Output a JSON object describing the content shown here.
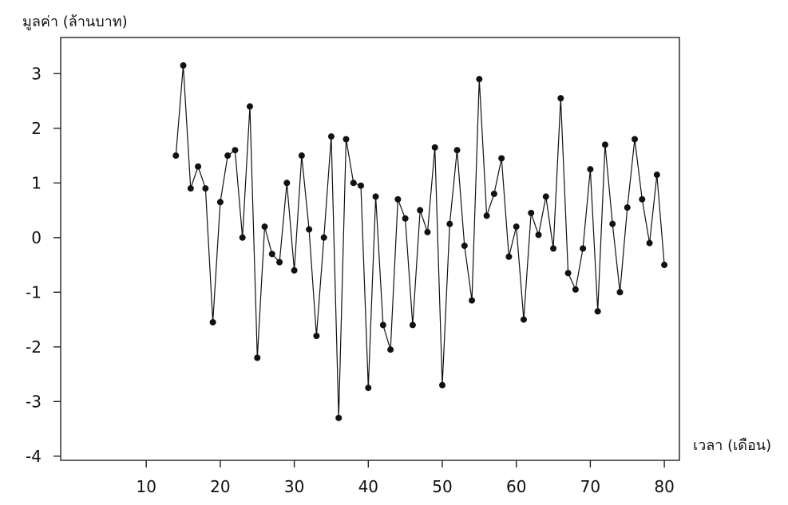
{
  "chart_data": {
    "type": "line",
    "title": "",
    "ylabel": "มูลค่า (ล้านบาท)",
    "xlabel": "เวลา (เดือน)",
    "xlim": [
      4,
      83
    ],
    "ylim": [
      -4,
      3.4
    ],
    "xticks": [
      10,
      20,
      30,
      40,
      50,
      60,
      70,
      80
    ],
    "yticks": [
      3,
      2,
      1,
      0,
      -1,
      -2,
      -3,
      -4
    ],
    "grid": false,
    "series": [
      {
        "x": [
          14,
          15,
          16,
          17,
          18,
          19,
          20,
          21,
          22,
          23,
          24,
          25,
          26,
          27,
          28,
          29,
          30,
          31,
          32,
          33,
          34,
          35,
          36,
          37,
          38,
          39,
          40,
          41,
          42,
          43,
          44,
          45,
          46,
          47,
          48,
          49,
          50,
          51,
          52,
          53,
          54,
          55,
          56,
          57,
          58,
          59,
          60,
          61,
          62,
          63,
          64,
          65,
          66,
          67,
          68,
          69,
          70,
          71,
          72,
          73,
          74,
          75,
          76,
          77,
          78,
          79,
          80
        ],
        "y": [
          1.5,
          3.15,
          0.9,
          1.3,
          0.9,
          -1.55,
          0.65,
          1.5,
          1.6,
          0.0,
          2.4,
          -2.2,
          0.2,
          -0.3,
          -0.45,
          1.0,
          -0.6,
          1.5,
          0.15,
          -1.8,
          0.0,
          1.85,
          -3.3,
          1.8,
          1.0,
          0.95,
          -2.75,
          0.75,
          -1.6,
          -2.05,
          0.7,
          0.35,
          -1.6,
          0.5,
          0.1,
          1.65,
          -2.7,
          0.25,
          1.6,
          -0.15,
          -1.15,
          2.9,
          0.4,
          0.8,
          1.45,
          -0.35,
          0.2,
          -1.5,
          0.45,
          0.05,
          0.75,
          -0.2,
          2.55,
          -0.65,
          -0.95,
          -0.2,
          1.25,
          -1.35,
          1.7,
          0.25,
          -1.0,
          0.55,
          1.8,
          0.7,
          -0.1,
          1.15,
          -0.5
        ]
      }
    ]
  }
}
